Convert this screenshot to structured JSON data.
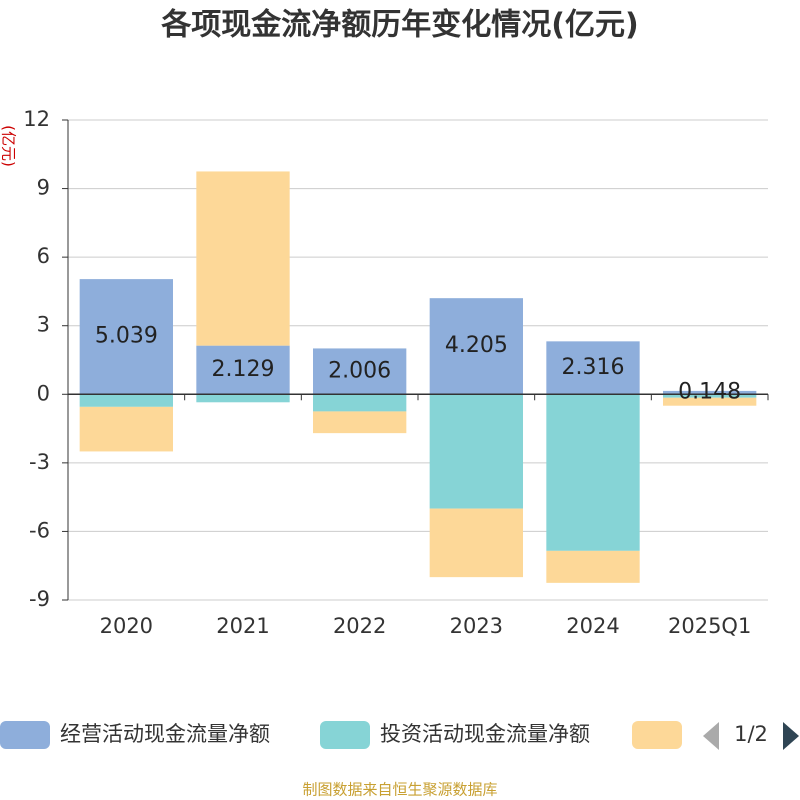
{
  "chart_data": {
    "type": "bar",
    "stacked": true,
    "title": "各项现金流净额历年变化情况(亿元)",
    "y_axis_label": "(亿元)",
    "categories": [
      "2020",
      "2021",
      "2022",
      "2023",
      "2024",
      "2025Q1"
    ],
    "series": [
      {
        "name": "经营活动现金流量净额",
        "color": "#8eaedb",
        "values": [
          5.039,
          2.129,
          2.006,
          4.205,
          2.316,
          0.148
        ],
        "show_labels": true
      },
      {
        "name": "投资活动现金流量净额",
        "color": "#86d4d6",
        "values": [
          -0.55,
          -0.35,
          -0.75,
          -5.0,
          -6.85,
          -0.15
        ]
      },
      {
        "color": "#fdd898",
        "values": [
          -1.95,
          7.62,
          -0.95,
          -3.0,
          -1.4,
          -0.35
        ]
      }
    ],
    "ylim": [
      -9,
      12
    ],
    "yticks": [
      -9,
      -6,
      -3,
      0,
      3,
      6,
      9,
      12
    ],
    "grid": true,
    "legend_page": "1/2",
    "source": "制图数据来自恒生聚源数据库"
  }
}
